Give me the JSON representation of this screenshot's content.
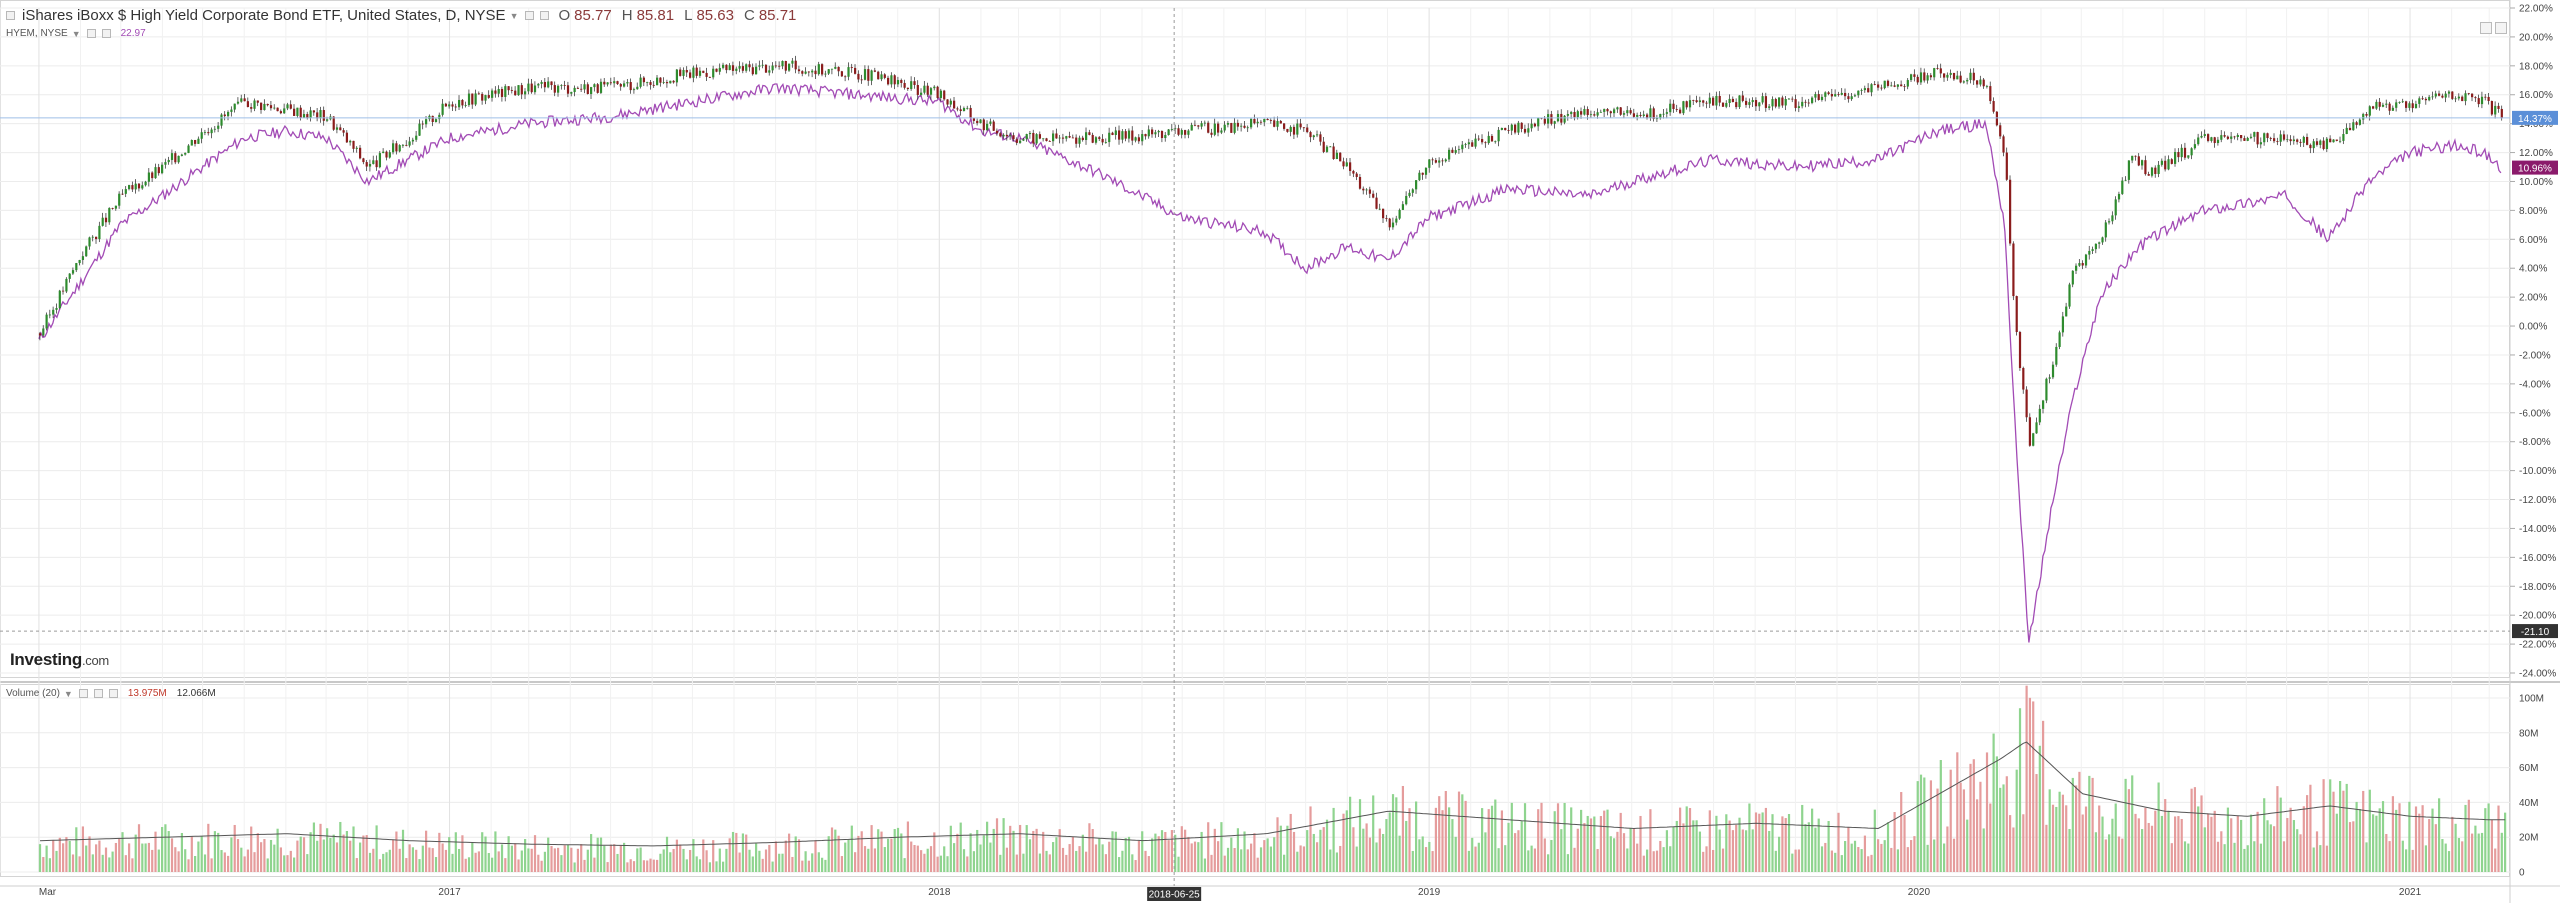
{
  "header": {
    "title": "iShares iBoxx $ High Yield Corporate Bond ETF, United States, D, NYSE",
    "open_label": "O",
    "open": "85.77",
    "high_label": "H",
    "high": "85.81",
    "low_label": "L",
    "low": "85.63",
    "close_label": "C",
    "close": "85.71",
    "compare_symbol": "HYEM, NYSE",
    "compare_value": "22.97"
  },
  "volume_pane": {
    "label": "Volume (20)",
    "value1": "13.975M",
    "value2": "12.066M"
  },
  "branding": {
    "logo_main": "Investing",
    "logo_suffix": ".com"
  },
  "price_axis": {
    "ticks": [
      "22.00%",
      "20.00%",
      "18.00%",
      "16.00%",
      "14.00%",
      "12.00%",
      "10.00%",
      "8.00%",
      "6.00%",
      "4.00%",
      "2.00%",
      "0.00%",
      "-2.00%",
      "-4.00%",
      "-6.00%",
      "-8.00%",
      "-10.00%",
      "-12.00%",
      "-14.00%",
      "-16.00%",
      "-18.00%",
      "-20.00%",
      "-22.00%",
      "-24.00%"
    ],
    "badge_main": "14.37%",
    "badge_compare": "10.96%",
    "badge_crosshair": "-21.10"
  },
  "volume_axis": {
    "ticks": [
      "100M",
      "80M",
      "60M",
      "40M",
      "20M",
      "0"
    ]
  },
  "time_axis": {
    "labels": [
      "Mar",
      "2017",
      "2018",
      "2019",
      "2020",
      "2021"
    ],
    "crosshair_date": "2018-06-25"
  },
  "colors": {
    "up": "#2e8b2e",
    "down": "#8b1c1c",
    "compare_line": "#a24bb5",
    "badge_main": "#5b8fd8",
    "badge_compare": "#8b1a6b",
    "volume_up": "#8fd48f",
    "volume_down": "#e59c9c",
    "volume_ma": "#555555",
    "gridline": "#ececec"
  },
  "chart_data": {
    "type": "line",
    "ylabel": "",
    "ylim": [
      -24,
      22
    ],
    "series": [
      {
        "x": [
          "2016-03-01",
          "2016-04-01",
          "2016-05-01",
          "2016-06-01",
          "2016-07-01",
          "2016-08-01",
          "2016-09-01",
          "2016-10-01",
          "2016-11-01",
          "2016-12-01",
          "2017-01-01",
          "2017-03-01",
          "2017-05-01",
          "2017-07-01",
          "2017-09-01",
          "2017-11-01",
          "2018-01-01",
          "2018-02-01",
          "2018-03-01",
          "2018-05-01",
          "2018-07-01",
          "2018-09-01",
          "2018-10-01",
          "2018-11-01",
          "2018-12-01",
          "2019-01-01",
          "2019-03-01",
          "2019-05-01",
          "2019-06-01",
          "2019-08-01",
          "2019-10-01",
          "2019-12-01",
          "2020-01-15",
          "2020-02-20",
          "2020-03-05",
          "2020-03-12",
          "2020-03-23",
          "2020-04-10",
          "2020-04-25",
          "2020-05-15",
          "2020-06-08",
          "2020-06-20",
          "2020-08-01",
          "2020-10-01",
          "2020-11-01",
          "2020-12-01",
          "2021-01-01",
          "2021-02-01",
          "2021-02-25",
          "2021-03-10"
        ],
        "values": [
          -0.5,
          5,
          9,
          11,
          13.5,
          15.5,
          15,
          14.5,
          11,
          13,
          15.5,
          16.5,
          16.5,
          17.5,
          18,
          17.5,
          16,
          14,
          13,
          13,
          13.5,
          14,
          13.5,
          11,
          7,
          11.5,
          13.5,
          15,
          14.5,
          15.5,
          15.5,
          16.5,
          17.5,
          17,
          11,
          0,
          -8,
          -2,
          4,
          6,
          12,
          10.5,
          13,
          13,
          12.5,
          15,
          15.5,
          16,
          15.5,
          14.4
        ]
      },
      {
        "name": "HYEM, NYSE",
        "x": [
          "2016-03-01",
          "2016-04-01",
          "2016-05-01",
          "2016-06-01",
          "2016-07-01",
          "2016-08-01",
          "2016-09-01",
          "2016-10-01",
          "2016-11-01",
          "2016-12-01",
          "2017-01-01",
          "2017-03-01",
          "2017-05-01",
          "2017-07-01",
          "2017-09-01",
          "2017-11-01",
          "2018-01-01",
          "2018-02-01",
          "2018-03-01",
          "2018-05-01",
          "2018-07-01",
          "2018-09-01",
          "2018-10-01",
          "2018-11-01",
          "2018-12-01",
          "2019-01-01",
          "2019-03-01",
          "2019-05-01",
          "2019-06-01",
          "2019-08-01",
          "2019-10-01",
          "2019-12-01",
          "2020-01-15",
          "2020-02-20",
          "2020-03-05",
          "2020-03-12",
          "2020-03-23",
          "2020-04-10",
          "2020-04-25",
          "2020-05-15",
          "2020-06-08",
          "2020-06-20",
          "2020-08-01",
          "2020-10-01",
          "2020-11-01",
          "2020-12-01",
          "2021-01-01",
          "2021-02-01",
          "2021-02-25",
          "2021-03-10"
        ],
        "values": [
          -1,
          3,
          7,
          9,
          11,
          13,
          13.5,
          13,
          10,
          11.5,
          13,
          14,
          14.5,
          15.5,
          16.5,
          16,
          15.5,
          13.5,
          13,
          10.5,
          7.5,
          6.5,
          4,
          5.5,
          4.5,
          7.5,
          9.5,
          9,
          10,
          11.5,
          11,
          11.5,
          13.5,
          14,
          7,
          -6,
          -22,
          -12,
          -5,
          2,
          5,
          6,
          8,
          9,
          6,
          10,
          12,
          12.5,
          12,
          10.96
        ]
      }
    ],
    "volume": {
      "x": [
        "2016-03-01",
        "2016-06-01",
        "2016-09-01",
        "2016-12-01",
        "2017-03-01",
        "2017-06-01",
        "2017-09-01",
        "2017-12-01",
        "2018-03-01",
        "2018-06-01",
        "2018-09-01",
        "2018-12-01",
        "2019-03-01",
        "2019-06-01",
        "2019-09-01",
        "2019-12-01",
        "2020-03-01",
        "2020-03-20",
        "2020-05-01",
        "2020-07-01",
        "2020-09-01",
        "2020-11-01",
        "2021-01-01",
        "2021-03-01"
      ],
      "values": [
        18,
        20,
        22,
        18,
        16,
        15,
        17,
        20,
        22,
        18,
        22,
        35,
        30,
        25,
        28,
        25,
        65,
        75,
        45,
        35,
        32,
        38,
        32,
        30
      ],
      "ylim": [
        0,
        100
      ]
    }
  }
}
